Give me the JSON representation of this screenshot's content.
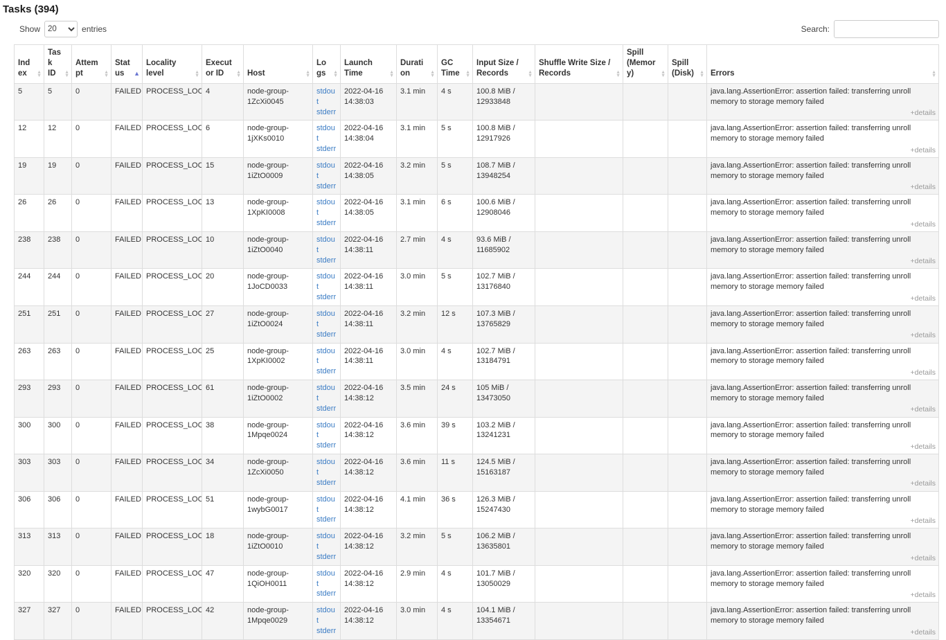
{
  "page": {
    "title": "Tasks (394)",
    "show_label": "Show",
    "entries_label": "entries",
    "page_size": "20",
    "search_label": "Search:",
    "search_value": ""
  },
  "colors": {
    "link": "#3b7cc4",
    "sort_active": "#6a76d2",
    "details": "#999999",
    "stripe": "#f4f4f4",
    "border": "#dddddd",
    "text": "#333333"
  },
  "table": {
    "details_label": "+details",
    "columns": [
      {
        "label": "Index",
        "sort": "none"
      },
      {
        "label": "Task ID",
        "sort": "none"
      },
      {
        "label": "Attempt",
        "sort": "none"
      },
      {
        "label": "Status",
        "sort": "asc"
      },
      {
        "label": "Locality level",
        "sort": "none"
      },
      {
        "label": "Executor ID",
        "sort": "none"
      },
      {
        "label": "Host",
        "sort": "none"
      },
      {
        "label": "Logs",
        "sort": "none"
      },
      {
        "label": "Launch Time",
        "sort": "none"
      },
      {
        "label": "Duration",
        "sort": "none"
      },
      {
        "label": "GC Time",
        "sort": "none"
      },
      {
        "label": "Input Size / Records",
        "sort": "none"
      },
      {
        "label": "Shuffle Write Size / Records",
        "sort": "none"
      },
      {
        "label": "Spill (Memory)",
        "sort": "none"
      },
      {
        "label": "Spill (Disk)",
        "sort": "none"
      },
      {
        "label": "Errors",
        "sort": "none"
      }
    ],
    "rows": [
      {
        "index": "5",
        "task_id": "5",
        "attempt": "0",
        "status": "FAILED",
        "locality_level": "PROCESS_LOCAL",
        "executor_id": "4",
        "host": "node-group-1ZcXi0045",
        "logs": [
          "stdout",
          "stderr"
        ],
        "launch_time": "2022-04-16 14:38:03",
        "duration": "3.1 min",
        "gc_time": "4 s",
        "input_size_records": "100.8 MiB / 12933848",
        "shuffle_write_size_records": "",
        "spill_memory": "",
        "spill_disk": "",
        "errors": "java.lang.AssertionError: assertion failed: transferring unroll memory to storage memory failed"
      },
      {
        "index": "12",
        "task_id": "12",
        "attempt": "0",
        "status": "FAILED",
        "locality_level": "PROCESS_LOCAL",
        "executor_id": "6",
        "host": "node-group-1jXKs0010",
        "logs": [
          "stdout",
          "stderr"
        ],
        "launch_time": "2022-04-16 14:38:04",
        "duration": "3.1 min",
        "gc_time": "5 s",
        "input_size_records": "100.8 MiB / 12917926",
        "shuffle_write_size_records": "",
        "spill_memory": "",
        "spill_disk": "",
        "errors": "java.lang.AssertionError: assertion failed: transferring unroll memory to storage memory failed"
      },
      {
        "index": "19",
        "task_id": "19",
        "attempt": "0",
        "status": "FAILED",
        "locality_level": "PROCESS_LOCAL",
        "executor_id": "15",
        "host": "node-group-1iZtO0009",
        "logs": [
          "stdout",
          "stderr"
        ],
        "launch_time": "2022-04-16 14:38:05",
        "duration": "3.2 min",
        "gc_time": "5 s",
        "input_size_records": "108.7 MiB / 13948254",
        "shuffle_write_size_records": "",
        "spill_memory": "",
        "spill_disk": "",
        "errors": "java.lang.AssertionError: assertion failed: transferring unroll memory to storage memory failed"
      },
      {
        "index": "26",
        "task_id": "26",
        "attempt": "0",
        "status": "FAILED",
        "locality_level": "PROCESS_LOCAL",
        "executor_id": "13",
        "host": "node-group-1XpKI0008",
        "logs": [
          "stdout",
          "stderr"
        ],
        "launch_time": "2022-04-16 14:38:05",
        "duration": "3.1 min",
        "gc_time": "6 s",
        "input_size_records": "100.6 MiB / 12908046",
        "shuffle_write_size_records": "",
        "spill_memory": "",
        "spill_disk": "",
        "errors": "java.lang.AssertionError: assertion failed: transferring unroll memory to storage memory failed"
      },
      {
        "index": "238",
        "task_id": "238",
        "attempt": "0",
        "status": "FAILED",
        "locality_level": "PROCESS_LOCAL",
        "executor_id": "10",
        "host": "node-group-1iZtO0040",
        "logs": [
          "stdout",
          "stderr"
        ],
        "launch_time": "2022-04-16 14:38:11",
        "duration": "2.7 min",
        "gc_time": "4 s",
        "input_size_records": "93.6 MiB / 11685902",
        "shuffle_write_size_records": "",
        "spill_memory": "",
        "spill_disk": "",
        "errors": "java.lang.AssertionError: assertion failed: transferring unroll memory to storage memory failed"
      },
      {
        "index": "244",
        "task_id": "244",
        "attempt": "0",
        "status": "FAILED",
        "locality_level": "PROCESS_LOCAL",
        "executor_id": "20",
        "host": "node-group-1JoCD0033",
        "logs": [
          "stdout",
          "stderr"
        ],
        "launch_time": "2022-04-16 14:38:11",
        "duration": "3.0 min",
        "gc_time": "5 s",
        "input_size_records": "102.7 MiB / 13176840",
        "shuffle_write_size_records": "",
        "spill_memory": "",
        "spill_disk": "",
        "errors": "java.lang.AssertionError: assertion failed: transferring unroll memory to storage memory failed"
      },
      {
        "index": "251",
        "task_id": "251",
        "attempt": "0",
        "status": "FAILED",
        "locality_level": "PROCESS_LOCAL",
        "executor_id": "27",
        "host": "node-group-1iZtO0024",
        "logs": [
          "stdout",
          "stderr"
        ],
        "launch_time": "2022-04-16 14:38:11",
        "duration": "3.2 min",
        "gc_time": "12 s",
        "input_size_records": "107.3 MiB / 13765829",
        "shuffle_write_size_records": "",
        "spill_memory": "",
        "spill_disk": "",
        "errors": "java.lang.AssertionError: assertion failed: transferring unroll memory to storage memory failed"
      },
      {
        "index": "263",
        "task_id": "263",
        "attempt": "0",
        "status": "FAILED",
        "locality_level": "PROCESS_LOCAL",
        "executor_id": "25",
        "host": "node-group-1XpKI0002",
        "logs": [
          "stdout",
          "stderr"
        ],
        "launch_time": "2022-04-16 14:38:11",
        "duration": "3.0 min",
        "gc_time": "4 s",
        "input_size_records": "102.7 MiB / 13184791",
        "shuffle_write_size_records": "",
        "spill_memory": "",
        "spill_disk": "",
        "errors": "java.lang.AssertionError: assertion failed: transferring unroll memory to storage memory failed"
      },
      {
        "index": "293",
        "task_id": "293",
        "attempt": "0",
        "status": "FAILED",
        "locality_level": "PROCESS_LOCAL",
        "executor_id": "61",
        "host": "node-group-1iZtO0002",
        "logs": [
          "stdout",
          "stderr"
        ],
        "launch_time": "2022-04-16 14:38:12",
        "duration": "3.5 min",
        "gc_time": "24 s",
        "input_size_records": "105 MiB / 13473050",
        "shuffle_write_size_records": "",
        "spill_memory": "",
        "spill_disk": "",
        "errors": "java.lang.AssertionError: assertion failed: transferring unroll memory to storage memory failed"
      },
      {
        "index": "300",
        "task_id": "300",
        "attempt": "0",
        "status": "FAILED",
        "locality_level": "PROCESS_LOCAL",
        "executor_id": "38",
        "host": "node-group-1Mpqe0024",
        "logs": [
          "stdout",
          "stderr"
        ],
        "launch_time": "2022-04-16 14:38:12",
        "duration": "3.6 min",
        "gc_time": "39 s",
        "input_size_records": "103.2 MiB / 13241231",
        "shuffle_write_size_records": "",
        "spill_memory": "",
        "spill_disk": "",
        "errors": "java.lang.AssertionError: assertion failed: transferring unroll memory to storage memory failed"
      },
      {
        "index": "303",
        "task_id": "303",
        "attempt": "0",
        "status": "FAILED",
        "locality_level": "PROCESS_LOCAL",
        "executor_id": "34",
        "host": "node-group-1ZcXi0050",
        "logs": [
          "stdout",
          "stderr"
        ],
        "launch_time": "2022-04-16 14:38:12",
        "duration": "3.6 min",
        "gc_time": "11 s",
        "input_size_records": "124.5 MiB / 15163187",
        "shuffle_write_size_records": "",
        "spill_memory": "",
        "spill_disk": "",
        "errors": "java.lang.AssertionError: assertion failed: transferring unroll memory to storage memory failed"
      },
      {
        "index": "306",
        "task_id": "306",
        "attempt": "0",
        "status": "FAILED",
        "locality_level": "PROCESS_LOCAL",
        "executor_id": "51",
        "host": "node-group-1wybG0017",
        "logs": [
          "stdout",
          "stderr"
        ],
        "launch_time": "2022-04-16 14:38:12",
        "duration": "4.1 min",
        "gc_time": "36 s",
        "input_size_records": "126.3 MiB / 15247430",
        "shuffle_write_size_records": "",
        "spill_memory": "",
        "spill_disk": "",
        "errors": "java.lang.AssertionError: assertion failed: transferring unroll memory to storage memory failed"
      },
      {
        "index": "313",
        "task_id": "313",
        "attempt": "0",
        "status": "FAILED",
        "locality_level": "PROCESS_LOCAL",
        "executor_id": "18",
        "host": "node-group-1iZtO0010",
        "logs": [
          "stdout",
          "stderr"
        ],
        "launch_time": "2022-04-16 14:38:12",
        "duration": "3.2 min",
        "gc_time": "5 s",
        "input_size_records": "106.2 MiB / 13635801",
        "shuffle_write_size_records": "",
        "spill_memory": "",
        "spill_disk": "",
        "errors": "java.lang.AssertionError: assertion failed: transferring unroll memory to storage memory failed"
      },
      {
        "index": "320",
        "task_id": "320",
        "attempt": "0",
        "status": "FAILED",
        "locality_level": "PROCESS_LOCAL",
        "executor_id": "47",
        "host": "node-group-1QiOH0011",
        "logs": [
          "stdout",
          "stderr"
        ],
        "launch_time": "2022-04-16 14:38:12",
        "duration": "2.9 min",
        "gc_time": "4 s",
        "input_size_records": "101.7 MiB / 13050029",
        "shuffle_write_size_records": "",
        "spill_memory": "",
        "spill_disk": "",
        "errors": "java.lang.AssertionError: assertion failed: transferring unroll memory to storage memory failed"
      },
      {
        "index": "327",
        "task_id": "327",
        "attempt": "0",
        "status": "FAILED",
        "locality_level": "PROCESS_LOCAL",
        "executor_id": "42",
        "host": "node-group-1Mpqe0029",
        "logs": [
          "stdout",
          "stderr"
        ],
        "launch_time": "2022-04-16 14:38:12",
        "duration": "3.0 min",
        "gc_time": "4 s",
        "input_size_records": "104.1 MiB / 13354671",
        "shuffle_write_size_records": "",
        "spill_memory": "",
        "spill_disk": "",
        "errors": "java.lang.AssertionError: assertion failed: transferring unroll memory to storage memory failed"
      }
    ]
  }
}
